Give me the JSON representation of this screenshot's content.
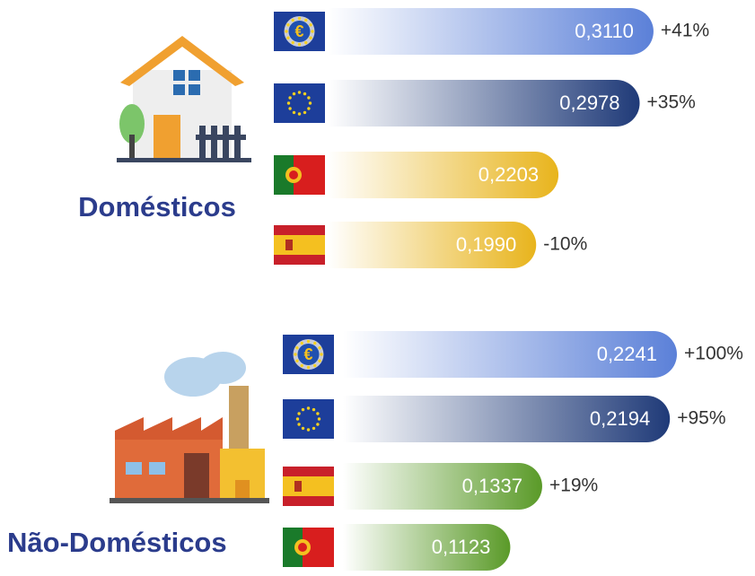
{
  "chart_data": [
    {
      "type": "bar",
      "title": "Domésticos",
      "values": [
        0.311,
        0.2978,
        0.2203,
        0.199
      ],
      "value_labels": [
        "0,3110",
        "0,2978",
        "0,2203",
        "0,1990"
      ],
      "annotations": [
        "+41%",
        "+35%",
        null,
        "-10%"
      ],
      "colors": [
        "#5b80d8",
        "#1f3a78",
        "#e8b41c",
        "#e8b41c"
      ]
    },
    {
      "type": "bar",
      "title": "Não-Domésticos",
      "values": [
        0.2241,
        0.2194,
        0.1337,
        0.1123
      ],
      "value_labels": [
        "0,2241",
        "0,2194",
        "0,1337",
        "0,1123"
      ],
      "annotations": [
        "+100%",
        "+95%",
        "+19%",
        null
      ],
      "colors": [
        "#5b80d8",
        "#1f3a78",
        "#5a9a28",
        "#5a9a28"
      ]
    }
  ]
}
